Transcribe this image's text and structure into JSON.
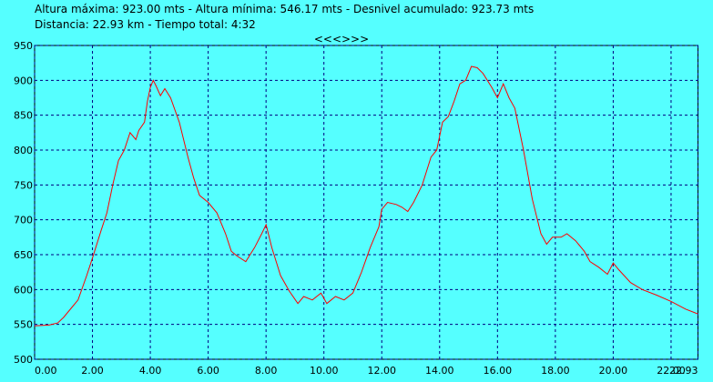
{
  "chart_data": {
    "type": "line",
    "title": "Altura máxima: 923.00 mts - Altura mínima: 546.17 mts - Desnivel acumulado: 923.73 mts",
    "subtitle": "Distancia: 22.93 km - Tiempo total: 4:32",
    "nav_label": "<<<>>>",
    "xlim": [
      0,
      22.93
    ],
    "ylim": [
      500,
      950
    ],
    "xticks": [
      {
        "value": 0,
        "label": "0.00"
      },
      {
        "value": 2,
        "label": "2.00"
      },
      {
        "value": 4,
        "label": "4.00"
      },
      {
        "value": 6,
        "label": "6.00"
      },
      {
        "value": 8,
        "label": "8.00"
      },
      {
        "value": 10,
        "label": "10.00"
      },
      {
        "value": 12,
        "label": "12.00"
      },
      {
        "value": 14,
        "label": "14.00"
      },
      {
        "value": 16,
        "label": "16.00"
      },
      {
        "value": 18,
        "label": "18.00"
      },
      {
        "value": 20,
        "label": "20.00"
      },
      {
        "value": 22,
        "label": "22.00"
      },
      22.93
    ],
    "yticks": [
      500,
      550,
      600,
      650,
      700,
      750,
      800,
      850,
      900,
      950
    ],
    "grid": true,
    "x": [
      0,
      0.5,
      0.8,
      1.0,
      1.3,
      1.5,
      1.8,
      2.0,
      2.3,
      2.5,
      2.7,
      2.9,
      3.1,
      3.3,
      3.5,
      3.6,
      3.8,
      3.9,
      4.0,
      4.1,
      4.2,
      4.35,
      4.5,
      4.7,
      5.0,
      5.3,
      5.5,
      5.7,
      6.0,
      6.3,
      6.6,
      6.8,
      7.0,
      7.3,
      7.6,
      7.85,
      8.0,
      8.2,
      8.5,
      8.8,
      9.1,
      9.3,
      9.6,
      9.9,
      10.1,
      10.4,
      10.7,
      11.0,
      11.3,
      11.6,
      11.9,
      12.0,
      12.2,
      12.5,
      12.7,
      12.9,
      13.1,
      13.4,
      13.7,
      13.9,
      14.1,
      14.3,
      14.5,
      14.7,
      14.9,
      15.1,
      15.3,
      15.5,
      15.8,
      16.0,
      16.2,
      16.4,
      16.6,
      16.9,
      17.2,
      17.5,
      17.7,
      17.9,
      18.2,
      18.4,
      18.7,
      19.0,
      19.2,
      19.5,
      19.8,
      20.0,
      20.2,
      20.6,
      21.0,
      21.5,
      22.0,
      22.5,
      22.93
    ],
    "series": [
      {
        "color": "#ff0000",
        "values": [
          548,
          549,
          552,
          560,
          575,
          585,
          620,
          645,
          685,
          710,
          750,
          785,
          800,
          825,
          815,
          828,
          840,
          870,
          890,
          900,
          892,
          878,
          888,
          875,
          840,
          790,
          760,
          735,
          725,
          710,
          680,
          655,
          648,
          640,
          660,
          680,
          693,
          660,
          620,
          598,
          580,
          590,
          585,
          595,
          580,
          590,
          585,
          595,
          625,
          660,
          690,
          715,
          725,
          722,
          718,
          712,
          725,
          750,
          790,
          800,
          840,
          848,
          870,
          895,
          900,
          920,
          918,
          910,
          890,
          875,
          895,
          875,
          860,
          800,
          730,
          680,
          665,
          675,
          675,
          680,
          670,
          655,
          640,
          632,
          622,
          638,
          628,
          610,
          600,
          592,
          583,
          572,
          565
        ]
      }
    ]
  }
}
